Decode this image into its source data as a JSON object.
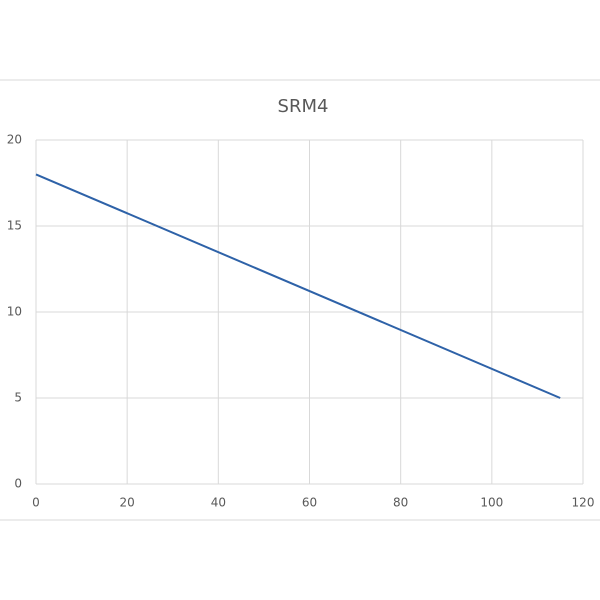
{
  "chart_data": {
    "type": "line",
    "title": "SRM4",
    "x": [
      0,
      115
    ],
    "values": [
      18,
      5
    ],
    "color": "#2e62a8",
    "xlim": [
      0,
      120
    ],
    "xticks": [
      0,
      20,
      40,
      60,
      80,
      100,
      120
    ],
    "ylim": [
      0,
      20
    ],
    "yticks": [
      0,
      5,
      10,
      15,
      20
    ],
    "grid": true
  }
}
